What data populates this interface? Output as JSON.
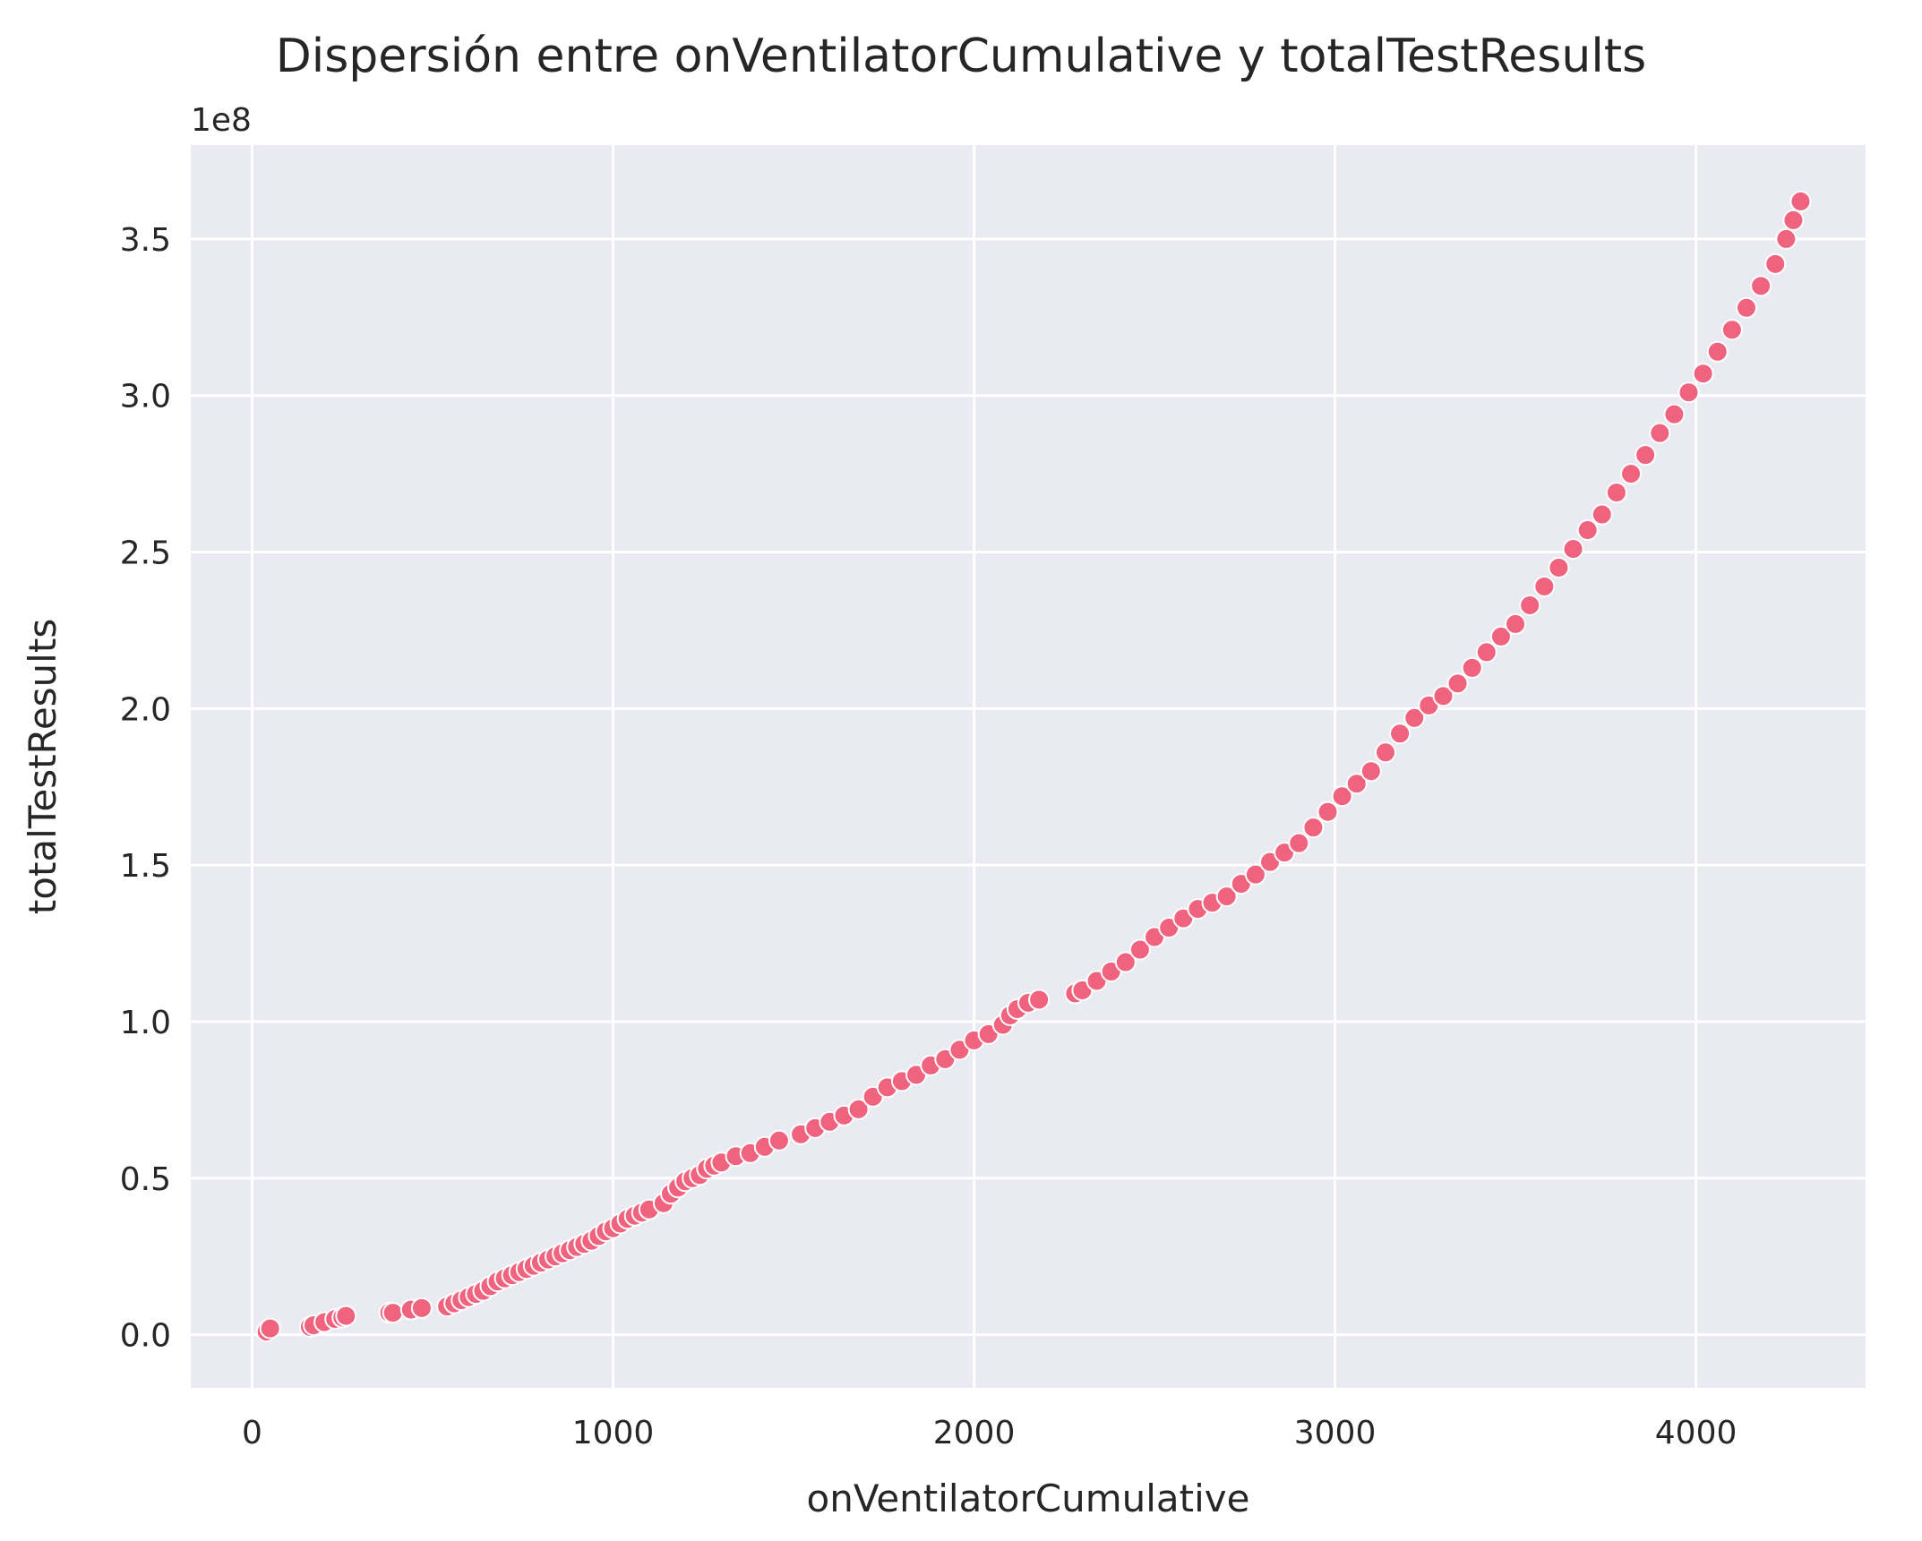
{
  "chart_data": {
    "type": "scatter",
    "title": "Dispersión entre onVentilatorCumulative y totalTestResults",
    "xlabel": "onVentilatorCumulative",
    "ylabel": "totalTestResults",
    "y_offset_label": "1e8",
    "xlim": [
      -170,
      4470
    ],
    "ylim": [
      -0.17,
      3.8
    ],
    "y_scale": 100000000,
    "x_ticks": [
      0,
      1000,
      2000,
      3000,
      4000
    ],
    "x_tick_labels": [
      "0",
      "1000",
      "2000",
      "3000",
      "4000"
    ],
    "y_ticks": [
      0.0,
      0.5,
      1.0,
      1.5,
      2.0,
      2.5,
      3.0,
      3.5
    ],
    "y_tick_labels": [
      "0.0",
      "0.5",
      "1.0",
      "1.5",
      "2.0",
      "2.5",
      "3.0",
      "3.5"
    ],
    "grid": true,
    "background_color": "#eaeaf2",
    "point_color": "#f0637e",
    "point_edge_color": "#ffffff",
    "series": [
      {
        "x": [
          40,
          50,
          160,
          170,
          200,
          230,
          250,
          260,
          380,
          390,
          440,
          470,
          540,
          560,
          580,
          600,
          620,
          640,
          660,
          680,
          700,
          720,
          740,
          760,
          780,
          800,
          820,
          840,
          860,
          880,
          900,
          920,
          940,
          960,
          980,
          1000,
          1020,
          1040,
          1060,
          1080,
          1100,
          1140,
          1160,
          1180,
          1200,
          1220,
          1240,
          1260,
          1280,
          1300,
          1340,
          1380,
          1420,
          1460,
          1520,
          1560,
          1600,
          1640,
          1680,
          1720,
          1760,
          1800,
          1840,
          1880,
          1920,
          1960,
          2000,
          2040,
          2080,
          2100,
          2120,
          2150,
          2180,
          2280,
          2300,
          2340,
          2380,
          2420,
          2460,
          2500,
          2540,
          2580,
          2620,
          2660,
          2700,
          2740,
          2780,
          2820,
          2860,
          2900,
          2940,
          2980,
          3020,
          3060,
          3100,
          3140,
          3180,
          3220,
          3260,
          3300,
          3340,
          3380,
          3420,
          3460,
          3500,
          3540,
          3580,
          3620,
          3660,
          3700,
          3740,
          3780,
          3820,
          3860,
          3900,
          3940,
          3980,
          4020,
          4060,
          4100,
          4140,
          4180,
          4220,
          4250,
          4270,
          4290
        ],
        "y": [
          0.01,
          0.02,
          0.025,
          0.03,
          0.04,
          0.05,
          0.055,
          0.06,
          0.07,
          0.07,
          0.08,
          0.085,
          0.09,
          0.1,
          0.11,
          0.12,
          0.13,
          0.14,
          0.155,
          0.17,
          0.18,
          0.19,
          0.2,
          0.21,
          0.22,
          0.23,
          0.24,
          0.25,
          0.26,
          0.27,
          0.28,
          0.29,
          0.3,
          0.315,
          0.33,
          0.34,
          0.355,
          0.37,
          0.38,
          0.39,
          0.4,
          0.42,
          0.45,
          0.47,
          0.49,
          0.5,
          0.51,
          0.53,
          0.54,
          0.55,
          0.57,
          0.58,
          0.6,
          0.62,
          0.64,
          0.66,
          0.68,
          0.7,
          0.72,
          0.76,
          0.79,
          0.81,
          0.83,
          0.86,
          0.88,
          0.91,
          0.94,
          0.96,
          0.99,
          1.02,
          1.04,
          1.06,
          1.07,
          1.09,
          1.1,
          1.13,
          1.16,
          1.19,
          1.23,
          1.27,
          1.3,
          1.33,
          1.36,
          1.38,
          1.4,
          1.44,
          1.47,
          1.51,
          1.54,
          1.57,
          1.62,
          1.67,
          1.72,
          1.76,
          1.8,
          1.86,
          1.92,
          1.97,
          2.01,
          2.04,
          2.08,
          2.13,
          2.18,
          2.23,
          2.27,
          2.33,
          2.39,
          2.45,
          2.51,
          2.57,
          2.62,
          2.69,
          2.75,
          2.81,
          2.88,
          2.94,
          3.01,
          3.07,
          3.14,
          3.21,
          3.28,
          3.35,
          3.42,
          3.5,
          3.56,
          3.62
        ]
      }
    ]
  }
}
